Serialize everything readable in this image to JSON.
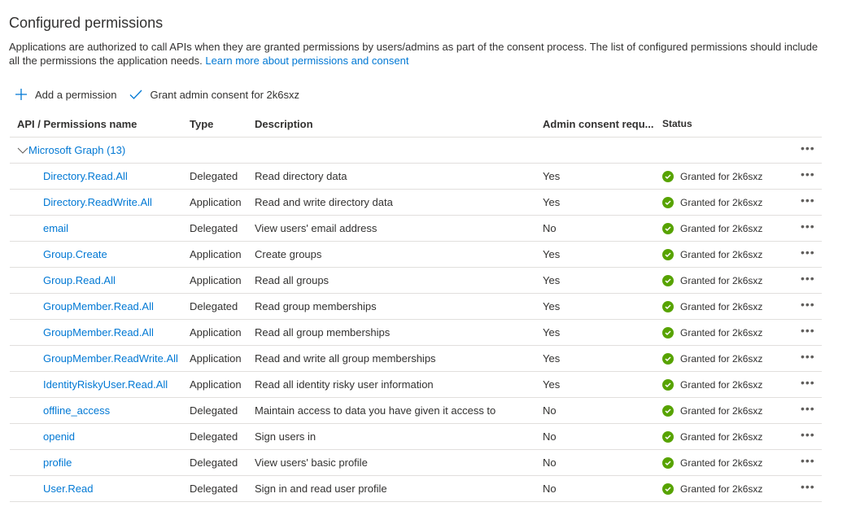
{
  "title": "Configured permissions",
  "description": "Applications are authorized to call APIs when they are granted permissions by users/admins as part of the consent process. The list of configured permissions should include all the permissions the application needs.",
  "learn_more": "Learn more about permissions and consent",
  "toolbar": {
    "add": "Add a permission",
    "grant": "Grant admin consent for 2k6sxz"
  },
  "columns": {
    "name": "API / Permissions name",
    "type": "Type",
    "description": "Description",
    "admin": "Admin consent requ...",
    "status": "Status"
  },
  "group": {
    "label": "Microsoft Graph (13)",
    "more": "•••"
  },
  "rows": [
    {
      "name": "Directory.Read.All",
      "type": "Delegated",
      "description": "Read directory data",
      "admin": "Yes",
      "status": "Granted for 2k6sxz"
    },
    {
      "name": "Directory.ReadWrite.All",
      "type": "Application",
      "description": "Read and write directory data",
      "admin": "Yes",
      "status": "Granted for 2k6sxz"
    },
    {
      "name": "email",
      "type": "Delegated",
      "description": "View users' email address",
      "admin": "No",
      "status": "Granted for 2k6sxz"
    },
    {
      "name": "Group.Create",
      "type": "Application",
      "description": "Create groups",
      "admin": "Yes",
      "status": "Granted for 2k6sxz"
    },
    {
      "name": "Group.Read.All",
      "type": "Application",
      "description": "Read all groups",
      "admin": "Yes",
      "status": "Granted for 2k6sxz"
    },
    {
      "name": "GroupMember.Read.All",
      "type": "Delegated",
      "description": "Read group memberships",
      "admin": "Yes",
      "status": "Granted for 2k6sxz"
    },
    {
      "name": "GroupMember.Read.All",
      "type": "Application",
      "description": "Read all group memberships",
      "admin": "Yes",
      "status": "Granted for 2k6sxz"
    },
    {
      "name": "GroupMember.ReadWrite.All",
      "type": "Application",
      "description": "Read and write all group memberships",
      "admin": "Yes",
      "status": "Granted for 2k6sxz"
    },
    {
      "name": "IdentityRiskyUser.Read.All",
      "type": "Application",
      "description": "Read all identity risky user information",
      "admin": "Yes",
      "status": "Granted for 2k6sxz"
    },
    {
      "name": "offline_access",
      "type": "Delegated",
      "description": "Maintain access to data you have given it access to",
      "admin": "No",
      "status": "Granted for 2k6sxz"
    },
    {
      "name": "openid",
      "type": "Delegated",
      "description": "Sign users in",
      "admin": "No",
      "status": "Granted for 2k6sxz"
    },
    {
      "name": "profile",
      "type": "Delegated",
      "description": "View users' basic profile",
      "admin": "No",
      "status": "Granted for 2k6sxz"
    },
    {
      "name": "User.Read",
      "type": "Delegated",
      "description": "Sign in and read user profile",
      "admin": "No",
      "status": "Granted for 2k6sxz"
    }
  ],
  "colors": {
    "accent": "#0078d4",
    "success": "#57a300"
  }
}
